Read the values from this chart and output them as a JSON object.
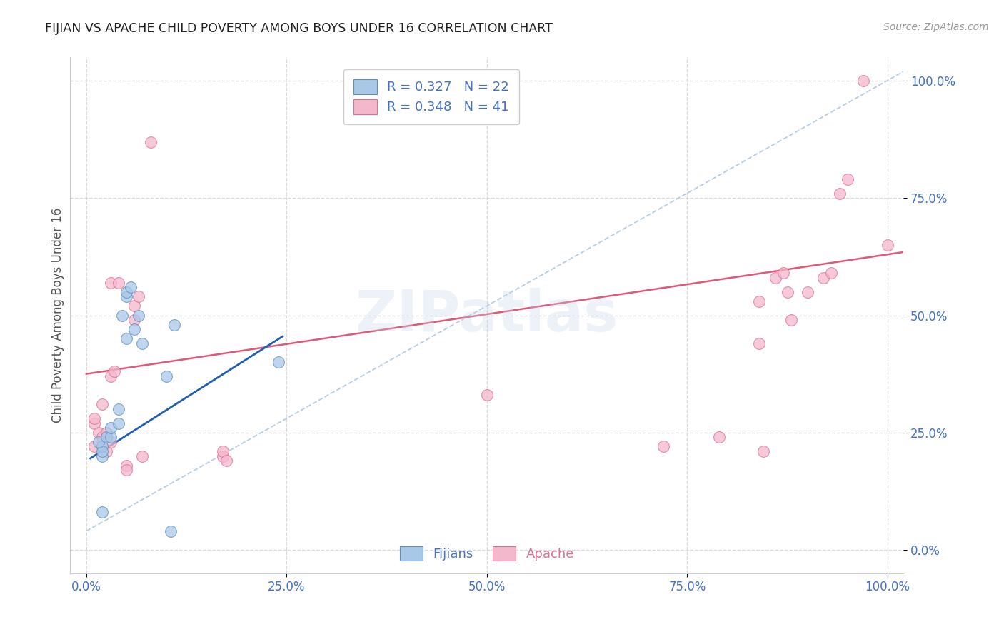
{
  "title": "FIJIAN VS APACHE CHILD POVERTY AMONG BOYS UNDER 16 CORRELATION CHART",
  "source": "Source: ZipAtlas.com",
  "ylabel": "Child Poverty Among Boys Under 16",
  "watermark": "ZIPatlas",
  "legend_blue_R": "0.327",
  "legend_blue_N": "22",
  "legend_pink_R": "0.348",
  "legend_pink_N": "41",
  "xlim": [
    -0.02,
    1.02
  ],
  "ylim": [
    -0.05,
    1.05
  ],
  "xticks": [
    0.0,
    0.25,
    0.5,
    0.75,
    1.0
  ],
  "yticks": [
    0.0,
    0.25,
    0.5,
    0.75,
    1.0
  ],
  "xticklabels": [
    "0.0%",
    "25.0%",
    "50.0%",
    "75.0%",
    "100.0%"
  ],
  "yticklabels": [
    "0.0%",
    "25.0%",
    "50.0%",
    "75.0%",
    "100.0%"
  ],
  "blue_scatter_color": "#a8c8e8",
  "pink_scatter_color": "#f4b8cc",
  "blue_edge_color": "#6090c0",
  "pink_edge_color": "#e07090",
  "blue_line_color": "#2060b0",
  "pink_line_color": "#e05878",
  "dashed_line_color": "#b0c8e0",
  "grid_color": "#d8d8d8",
  "tick_color": "#4472c4",
  "fijians_x": [
    0.02,
    0.02,
    0.02,
    0.015,
    0.025,
    0.03,
    0.03,
    0.04,
    0.04,
    0.045,
    0.05,
    0.05,
    0.05,
    0.055,
    0.06,
    0.065,
    0.07,
    0.1,
    0.105,
    0.11,
    0.24,
    0.02
  ],
  "fijians_y": [
    0.2,
    0.22,
    0.21,
    0.23,
    0.24,
    0.24,
    0.26,
    0.27,
    0.3,
    0.5,
    0.54,
    0.55,
    0.45,
    0.56,
    0.47,
    0.5,
    0.44,
    0.37,
    0.04,
    0.48,
    0.4,
    0.08
  ],
  "apache_x": [
    0.01,
    0.01,
    0.015,
    0.02,
    0.02,
    0.02,
    0.025,
    0.03,
    0.03,
    0.035,
    0.04,
    0.05,
    0.05,
    0.06,
    0.06,
    0.065,
    0.07,
    0.08,
    0.17,
    0.17,
    0.175,
    0.5,
    0.72,
    0.79,
    0.84,
    0.84,
    0.845,
    0.86,
    0.87,
    0.875,
    0.88,
    0.9,
    0.92,
    0.93,
    0.94,
    0.95,
    0.97,
    1.0,
    0.01,
    0.025,
    0.03
  ],
  "apache_y": [
    0.22,
    0.27,
    0.25,
    0.22,
    0.24,
    0.31,
    0.21,
    0.37,
    0.57,
    0.38,
    0.57,
    0.18,
    0.17,
    0.49,
    0.52,
    0.54,
    0.2,
    0.87,
    0.2,
    0.21,
    0.19,
    0.33,
    0.22,
    0.24,
    0.44,
    0.53,
    0.21,
    0.58,
    0.59,
    0.55,
    0.49,
    0.55,
    0.58,
    0.59,
    0.76,
    0.79,
    1.0,
    0.65,
    0.28,
    0.25,
    0.23
  ],
  "blue_trend_x": [
    0.005,
    0.245
  ],
  "blue_trend_y": [
    0.195,
    0.455
  ],
  "pink_trend_x": [
    0.0,
    1.02
  ],
  "pink_trend_y": [
    0.375,
    0.635
  ],
  "dashed_trend_x": [
    0.0,
    1.02
  ],
  "dashed_trend_y": [
    0.04,
    1.02
  ]
}
